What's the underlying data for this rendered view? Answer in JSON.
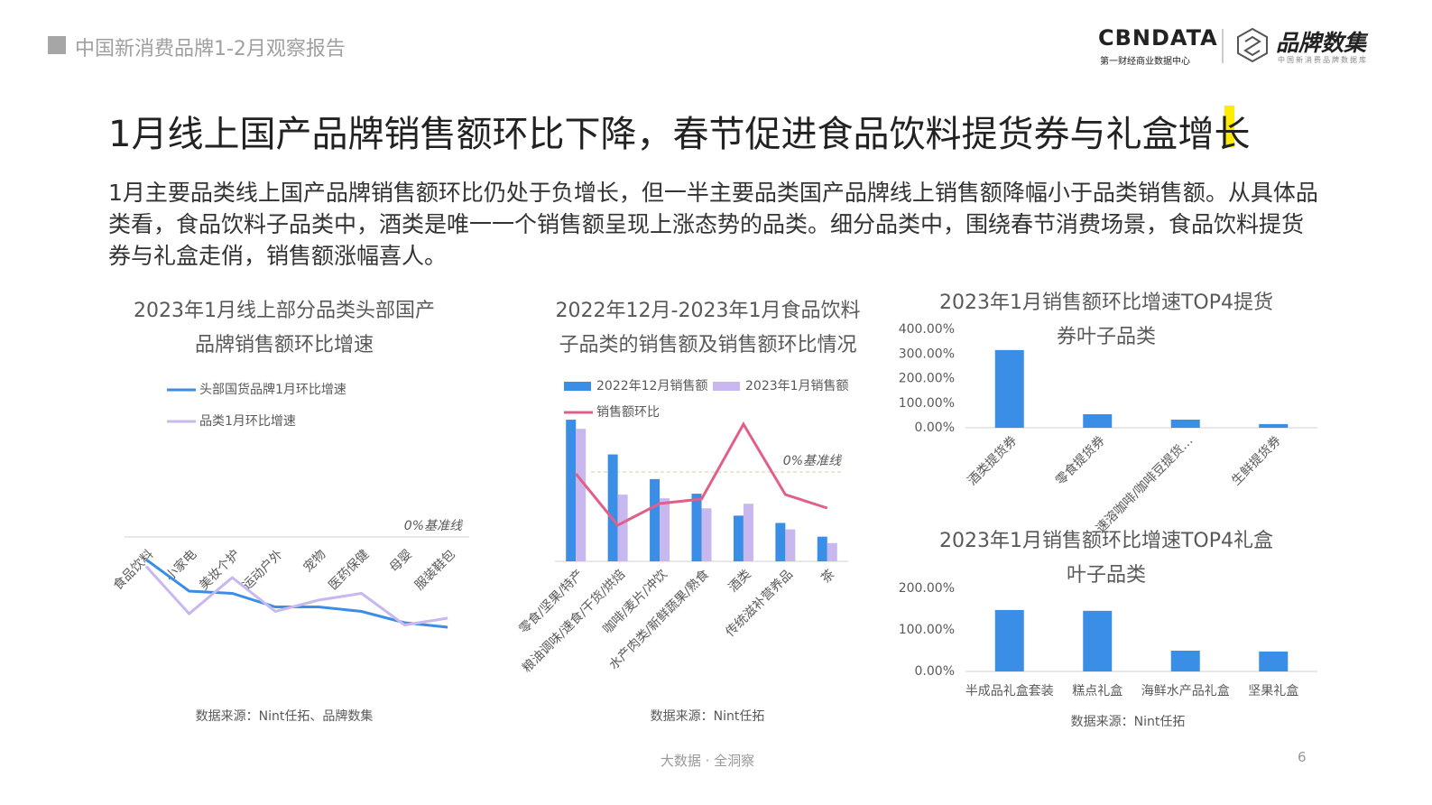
{
  "header": {
    "title": "中国新消费品牌1-2月观察报告",
    "logo": "CBNDATA",
    "logo_sub": "第一财经商业数据中心",
    "brand": "品牌数集",
    "brand_sub": "中国新消费品牌数据库"
  },
  "headline": "1月线上国产品牌销售额环比下降，春节促进食品饮料提货券与礼盒增长",
  "body": "1月主要品类线上国产品牌销售额环比仍处于负增长，但一半主要品类国产品牌线上销售额降幅小于品类销售额。从具体品类看，食品饮料子品类中，酒类是唯一一个销售额呈现上涨态势的品类。细分品类中，围绕春节消费场景，食品饮料提货券与礼盒走俏，销售额涨幅喜人。",
  "footer": {
    "slogan": "大数据 · 全洞察",
    "page": "6"
  },
  "chart_data": [
    {
      "type": "line",
      "title": "2023年1月线上部分品类头部国产品牌销售额环比增速",
      "categories": [
        "食品饮料",
        "小家电",
        "美妆个护",
        "运动户外",
        "宠物",
        "医药保健",
        "母婴",
        "服装鞋包"
      ],
      "series": [
        {
          "name": "头部国货品牌1月环比增速",
          "color": "#3a8ee6",
          "values": [
            -10,
            -24,
            -25,
            -31,
            -31,
            -33,
            -38,
            -40
          ]
        },
        {
          "name": "品类1月环比增速",
          "color": "#c9b8ef",
          "values": [
            -13,
            -34,
            -18,
            -33,
            -28,
            -25,
            -39,
            -36
          ]
        }
      ],
      "ylim": [
        -42,
        0
      ],
      "annotation": "0%基准线",
      "source": "数据来源：Nint任拓、品牌数集"
    },
    {
      "type": "bar",
      "title": "2022年12月-2023年1月食品饮料子品类的销售额及销售额环比情况",
      "categories": [
        "零食/坚果/特产",
        "粮油调味/速食/干货/烘焙",
        "咖啡/麦片/冲饮",
        "水产肉类/新鲜蔬果/熟食",
        "酒类",
        "传统滋补营养品",
        "茶"
      ],
      "series": [
        {
          "name": "2022年12月销售额",
          "color": "#3a8ee6",
          "values": [
            155,
            117,
            90,
            74,
            50,
            42,
            27
          ]
        },
        {
          "name": "2023年1月销售额",
          "color": "#c9b8ef",
          "values": [
            145,
            73,
            69,
            58,
            63,
            35,
            20
          ]
        },
        {
          "name": "销售额环比",
          "color": "#e0608a",
          "type": "line",
          "axis": "y2",
          "values": [
            -1,
            -29.5,
            -17.5,
            -15,
            26.5,
            -12.5,
            -20
          ]
        }
      ],
      "ylim": [
        0,
        160
      ],
      "y2lim": [
        -49.5,
        31.5
      ],
      "annotation": "0%基准线",
      "source": "数据来源：Nint任拓"
    },
    {
      "type": "bar",
      "title": "2023年1月销售额环比增速TOP4提货券叶子品类",
      "categories": [
        "酒类提货券",
        "零食提货券",
        "速溶咖啡/咖啡豆提货…",
        "生鲜提货券"
      ],
      "series": [
        {
          "name": "环比增速",
          "color": "#3a8ee6",
          "values": [
            316,
            55,
            33,
            15
          ]
        }
      ],
      "ylim": [
        0,
        400
      ],
      "yticks": [
        {
          "value": 0,
          "label": "0.00%"
        },
        {
          "value": 100,
          "label": "100.00%"
        },
        {
          "value": 200,
          "label": "200.00%"
        },
        {
          "value": 300,
          "label": "300.00%"
        },
        {
          "value": 400,
          "label": "400.00%"
        }
      ],
      "grid": false
    },
    {
      "type": "bar",
      "title": "2023年1月销售额环比增速TOP4礼盒叶子品类",
      "categories": [
        "半成品礼盒套装",
        "糕点礼盒",
        "海鲜水产品礼盒",
        "坚果礼盒"
      ],
      "series": [
        {
          "name": "环比增速",
          "color": "#3a8ee6",
          "values": [
            148,
            146,
            50,
            48
          ]
        }
      ],
      "ylim": [
        0,
        200
      ],
      "yticks": [
        {
          "value": 0,
          "label": "0.00%"
        },
        {
          "value": 100,
          "label": "100.00%"
        },
        {
          "value": 200,
          "label": "200.00%"
        }
      ],
      "grid": false,
      "source": "数据来源：Nint任拓"
    }
  ]
}
